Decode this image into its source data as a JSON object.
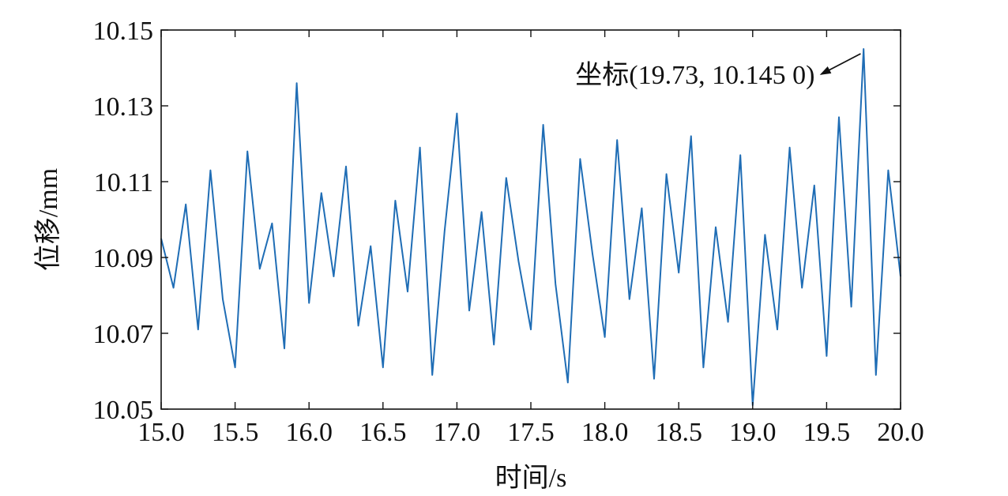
{
  "chart_data": {
    "type": "line",
    "title": "",
    "xlabel": "时间/s",
    "ylabel": "位移/mm",
    "xlim": [
      15.0,
      20.0
    ],
    "ylim": [
      10.05,
      10.15
    ],
    "grid": false,
    "xticks": [
      15.0,
      15.5,
      16.0,
      16.5,
      17.0,
      17.5,
      18.0,
      18.5,
      19.0,
      19.5,
      20.0
    ],
    "xtick_labels": [
      "15.0",
      "15.5",
      "16.0",
      "16.5",
      "17.0",
      "17.5",
      "18.0",
      "18.5",
      "19.0",
      "19.5",
      "20.0"
    ],
    "yticks": [
      10.05,
      10.07,
      10.09,
      10.11,
      10.13,
      10.15
    ],
    "ytick_labels": [
      "10.05",
      "10.07",
      "10.09",
      "10.11",
      "10.13",
      "10.15"
    ],
    "series": [
      {
        "color": "#1f6db5",
        "x": [
          15.0,
          15.0833,
          15.1667,
          15.25,
          15.3333,
          15.4167,
          15.5,
          15.5833,
          15.6667,
          15.75,
          15.8333,
          15.9167,
          16.0,
          16.0833,
          16.1667,
          16.25,
          16.3333,
          16.4167,
          16.5,
          16.5833,
          16.6667,
          16.75,
          16.8333,
          16.9167,
          17.0,
          17.0833,
          17.1667,
          17.25,
          17.3333,
          17.4167,
          17.5,
          17.5833,
          17.6667,
          17.75,
          17.8333,
          17.9167,
          18.0,
          18.0833,
          18.1667,
          18.25,
          18.3333,
          18.4167,
          18.5,
          18.5833,
          18.6667,
          18.75,
          18.8333,
          18.9167,
          19.0,
          19.0833,
          19.1667,
          19.25,
          19.3333,
          19.4167,
          19.5,
          19.5833,
          19.6667,
          19.75,
          19.8333,
          19.9167,
          20.0
        ],
        "y": [
          10.095,
          10.082,
          10.104,
          10.071,
          10.113,
          10.079,
          10.061,
          10.118,
          10.087,
          10.099,
          10.066,
          10.136,
          10.078,
          10.107,
          10.085,
          10.114,
          10.072,
          10.093,
          10.061,
          10.105,
          10.081,
          10.119,
          10.059,
          10.097,
          10.128,
          10.076,
          10.102,
          10.067,
          10.111,
          10.089,
          10.071,
          10.125,
          10.083,
          10.057,
          10.116,
          10.091,
          10.069,
          10.121,
          10.079,
          10.103,
          10.058,
          10.112,
          10.086,
          10.122,
          10.061,
          10.098,
          10.073,
          10.117,
          10.051,
          10.096,
          10.071,
          10.119,
          10.082,
          10.109,
          10.064,
          10.127,
          10.077,
          10.145,
          10.059,
          10.113,
          10.085
        ]
      }
    ],
    "annotations": [
      {
        "text": "坐标(19.73, 10.145 0)",
        "x": 19.73,
        "y": 10.145,
        "arrow": true
      }
    ]
  }
}
